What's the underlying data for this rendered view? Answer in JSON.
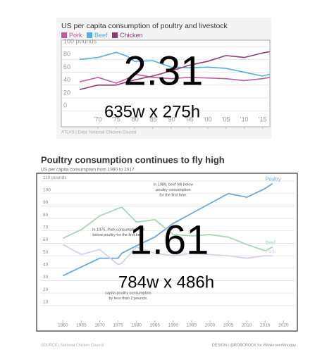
{
  "chart_data": [
    {
      "type": "line",
      "title": "US per capita consumption of poultry and livestock",
      "x": [
        1965,
        1970,
        1975,
        1978,
        1980,
        1985,
        1990,
        1995,
        2000,
        2005,
        2010,
        2015,
        2017
      ],
      "series": [
        {
          "name": "Pork",
          "color": "#c25a9c",
          "values": [
            45,
            52,
            43,
            50,
            57,
            52,
            50,
            52,
            51,
            50,
            47,
            50,
            52
          ]
        },
        {
          "name": "Beef",
          "color": "#4fb0e0",
          "values": [
            80,
            83,
            91,
            85,
            77,
            78,
            68,
            67,
            68,
            66,
            60,
            54,
            57
          ]
        },
        {
          "name": "Chicken",
          "color": "#8c3d6e",
          "values": [
            33,
            40,
            40,
            45,
            48,
            54,
            62,
            71,
            77,
            86,
            83,
            90,
            92
          ]
        }
      ],
      "xlim": [
        1960,
        2017
      ],
      "xticks": [
        {
          "value": 1970,
          "label": "'70"
        },
        {
          "value": 1975,
          "label": "'75"
        },
        {
          "value": 1980,
          "label": "'80"
        },
        {
          "value": 1985,
          "label": "'85"
        },
        {
          "value": 1990,
          "label": "'90"
        },
        {
          "value": 1995,
          "label": "'95"
        },
        {
          "value": 2000,
          "label": "'00"
        },
        {
          "value": 2005,
          "label": "'05"
        },
        {
          "value": 2010,
          "label": "'10"
        },
        {
          "value": 2015,
          "label": "'15"
        }
      ],
      "ylim": [
        -25,
        110
      ],
      "yticks": [
        0,
        20,
        40,
        60,
        80,
        {
          "value": 100,
          "label": "100 pounds"
        }
      ],
      "grid": true,
      "legend": "top",
      "footer": "ATLAS | Data: National Chicken Council",
      "overlay": [
        "2.31",
        "635w x 275h"
      ]
    },
    {
      "type": "line",
      "title": "Poultry consumption continues to fly high",
      "subtitle": "US per capita consumption from 1960 to 2017",
      "x": [
        1960,
        1965,
        1970,
        1975,
        1976,
        1980,
        1985,
        1990,
        1995,
        2000,
        2005,
        2010,
        2015,
        2017
      ],
      "series": [
        {
          "name": "Poultry",
          "color": "#6aa8d8",
          "values": [
            34,
            41,
            48,
            48,
            52,
            58,
            65,
            76,
            84,
            92,
            100,
            97,
            104,
            108
          ]
        },
        {
          "name": "Beef",
          "color": "#a8d5b5",
          "values": [
            64,
            71,
            82,
            88,
            89,
            77,
            79,
            67,
            66,
            67,
            65,
            59,
            54,
            57
          ]
        },
        {
          "name": "Pork",
          "color": "#d9d0e8",
          "values": [
            59,
            51,
            55,
            43,
            44,
            57,
            52,
            50,
            52,
            51,
            50,
            48,
            50,
            50
          ]
        }
      ],
      "xlim": [
        1954,
        2023
      ],
      "xticks": [
        1960,
        1965,
        1970,
        1975,
        1980,
        1985,
        1990,
        1995,
        2000,
        2005,
        2010,
        2015,
        2020
      ],
      "ylim": [
        -2,
        114
      ],
      "yticks": [
        10,
        20,
        30,
        40,
        50,
        60,
        70,
        80,
        90,
        100,
        {
          "value": 110,
          "label": "110 pounds"
        }
      ],
      "grid": true,
      "legend": "line-end",
      "annotations": [
        [
          "In 1988, beef fell below",
          "poultry consumption",
          "for the first time."
        ],
        [
          "In 1975, Pork consumption fell",
          "below poultry for the first time."
        ],
        [
          "capita poultry consumption",
          "by less than 2 pounds."
        ]
      ],
      "footer": "SOURCE | National Chicken Council",
      "credit": "DESIGN | @ROBCROCK for #MakeoverMonday",
      "overlay": [
        "1.61",
        "784w x 486h"
      ]
    }
  ]
}
